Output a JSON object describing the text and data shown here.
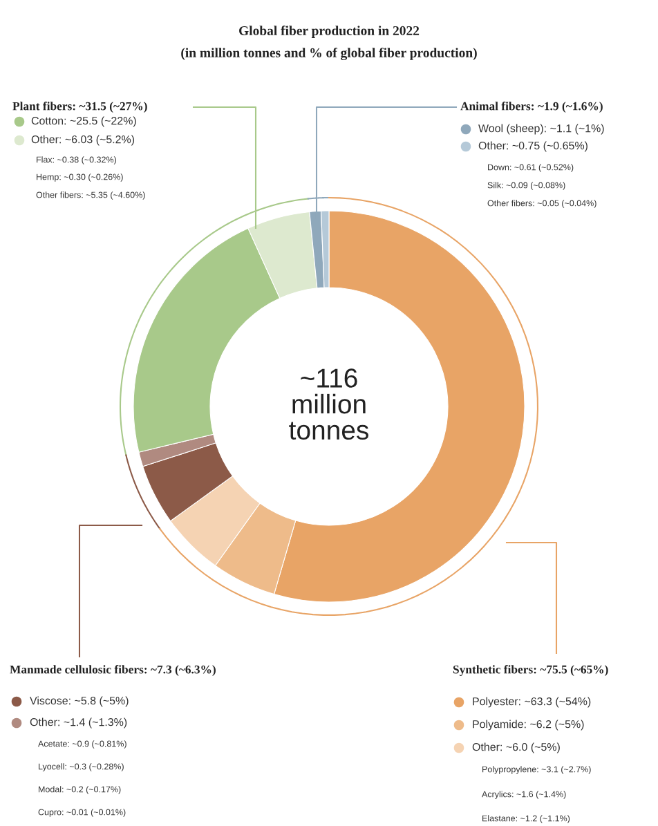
{
  "chart_data": {
    "type": "donut",
    "title": "Global fiber production in 2022",
    "subtitle": "(in million tonnes and % of global fiber production)",
    "categories": [
      "Polyester: ~63.3 (~54%)",
      "Polyamide: ~6.2 (~5%)",
      "Other: ~6.0 (~5%)",
      "Viscose: ~5.8 (~5%)",
      "Other: ~1.4 (~1.3%)",
      "Cotton: ~25.5 (~22%)",
      "Other: ~6.03 (~5.2%)",
      "Wool (sheep): ~1.1 (~1%)",
      "Other: ~0.75 (~0.65%)"
    ],
    "values": [
      63.3,
      6.2,
      6.0,
      5.8,
      1.4,
      25.5,
      6.03,
      1.1,
      0.75
    ],
    "legend": "bottom left",
    "colors": [
      "#e8a466",
      "#eebb8a",
      "#f5d3b3",
      "#8c5a48",
      "#b08a80",
      "#a8c98a",
      "#dde9cf",
      "#8fa8bb",
      "#b5c9d8"
    ],
    "annotations": [
      "~116\nmillion\ntonnes",
      "Plant fibers: ~31.5 (~27%)",
      "Flax: ~0.38 (~0.32%)",
      "Hemp: ~0.30 (~0.26%)",
      "Other fibers: ~5.35 (~4.60%)",
      "Animal fibers: ~1.9 (~1.6%)",
      "Down: ~0.61 (~0.52%)",
      "Silk: ~0.09 (~0.08%)",
      "Other fibers: ~0.05 (~0.04%)",
      "Manmade cellulosic fibers: ~7.3 (~6.3%)",
      "Acetate: ~0.9 (~0.81%)",
      "Lyocell: ~0.3 (~0.28%)",
      "Modal: ~0.2 (~0.17%)",
      "Cupro: ~0.01 (~0.01%)",
      "Synthetic fibers: ~75.5 (~65%)",
      "Polypropylene: ~3.1 (~2.7%)",
      "Acrylics: ~1.6 (~1.4%)",
      "Elastane: ~1.2 (~1.1%)"
    ]
  }
}
